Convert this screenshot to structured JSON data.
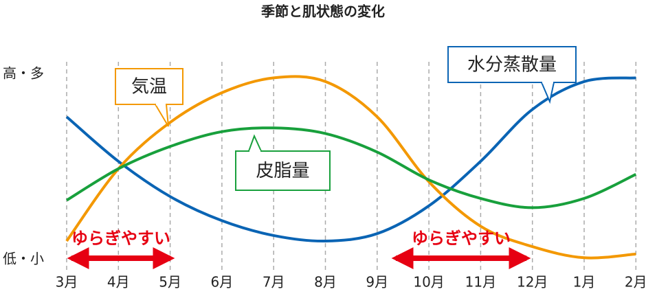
{
  "chart_data": {
    "type": "line",
    "title": "季節と肌状態の変化",
    "categories": [
      "3月",
      "4月",
      "5月",
      "6月",
      "7月",
      "8月",
      "9月",
      "10月",
      "11月",
      "12月",
      "1月",
      "2月"
    ],
    "series": [
      {
        "name": "水分蒸散量",
        "color": "#0a64b4",
        "values": [
          0.77,
          0.53,
          0.34,
          0.21,
          0.13,
          0.1,
          0.14,
          0.29,
          0.53,
          0.81,
          0.96,
          0.98
        ]
      },
      {
        "name": "気温",
        "color": "#f39800",
        "values": [
          0.1,
          0.49,
          0.74,
          0.9,
          0.98,
          0.96,
          0.77,
          0.42,
          0.18,
          0.07,
          0.01,
          0.03
        ]
      },
      {
        "name": "皮脂量",
        "color": "#18a03c",
        "values": [
          0.32,
          0.49,
          0.61,
          0.69,
          0.71,
          0.68,
          0.58,
          0.43,
          0.33,
          0.28,
          0.33,
          0.46
        ]
      }
    ],
    "ylim": [
      0,
      1
    ],
    "yticks": [
      {
        "value": 0,
        "label": "低・小"
      },
      {
        "value": 1,
        "label": "高・多"
      }
    ],
    "annotations": [
      "ゆらぎやすい",
      "ゆらぎやすい"
    ],
    "grid": true
  }
}
